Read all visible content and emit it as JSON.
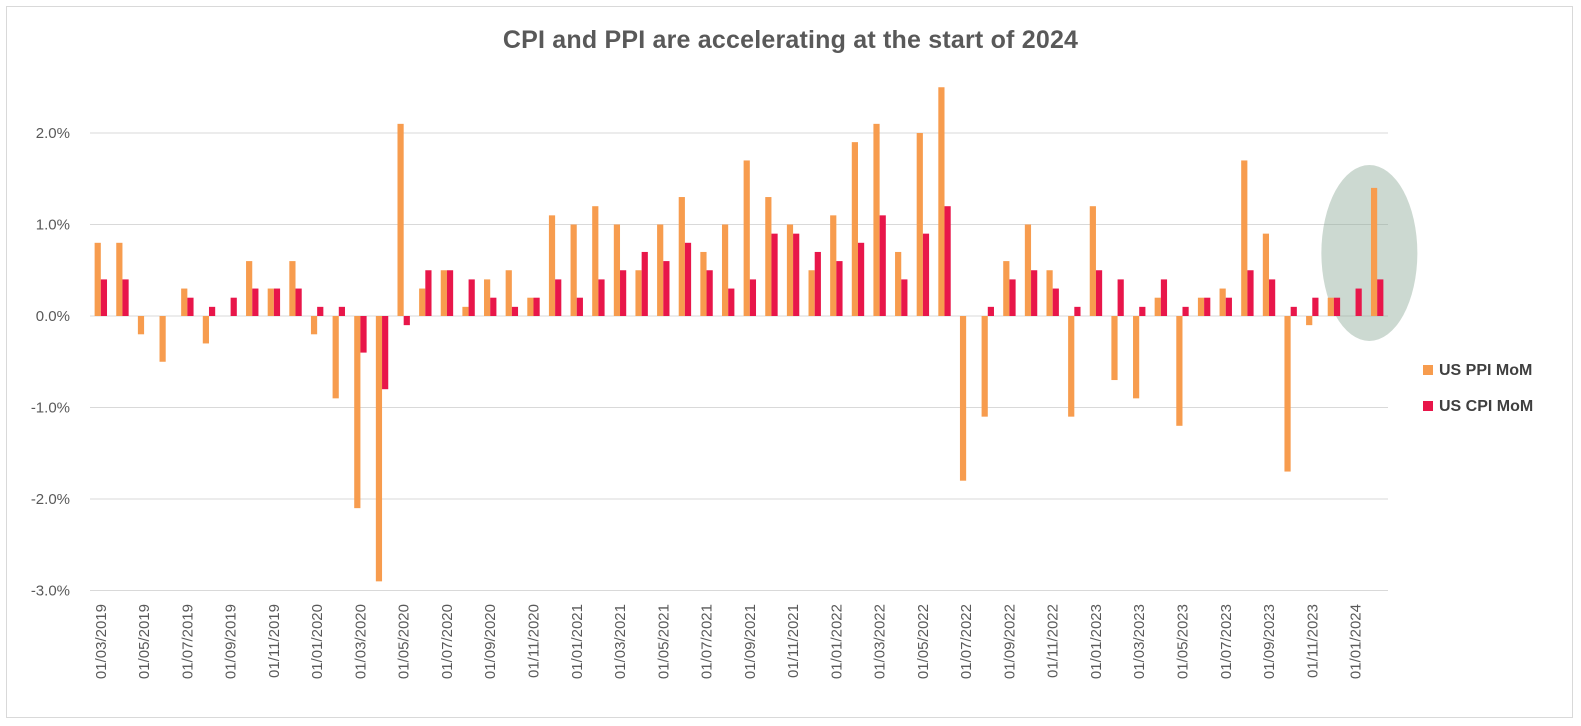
{
  "chart_data": {
    "type": "bar",
    "title": "CPI and PPI are accelerating at the start of 2024",
    "xlabel": "",
    "ylabel": "",
    "ylim": [
      -3.0,
      2.5
    ],
    "yticks": [
      "-3.0%",
      "-2.0%",
      "-1.0%",
      "0.0%",
      "1.0%",
      "2.0%"
    ],
    "ytick_values": [
      -3.0,
      -2.0,
      -1.0,
      0.0,
      1.0,
      2.0
    ],
    "grid": true,
    "legend_position": "right",
    "x_tick_labels": [
      "01/03/2019",
      "01/05/2019",
      "01/07/2019",
      "01/09/2019",
      "01/11/2019",
      "01/01/2020",
      "01/03/2020",
      "01/05/2020",
      "01/07/2020",
      "01/09/2020",
      "01/11/2020",
      "01/01/2021",
      "01/03/2021",
      "01/05/2021",
      "01/07/2021",
      "01/09/2021",
      "01/11/2021",
      "01/01/2022",
      "01/03/2022",
      "01/05/2022",
      "01/07/2022",
      "01/09/2022",
      "01/11/2022",
      "01/01/2023",
      "01/03/2023",
      "01/05/2023",
      "01/07/2023",
      "01/09/2023",
      "01/11/2023",
      "01/01/2024"
    ],
    "categories": [
      "01/03/2019",
      "01/04/2019",
      "01/05/2019",
      "01/06/2019",
      "01/07/2019",
      "01/08/2019",
      "01/09/2019",
      "01/10/2019",
      "01/11/2019",
      "01/12/2019",
      "01/01/2020",
      "01/02/2020",
      "01/03/2020",
      "01/04/2020",
      "01/05/2020",
      "01/06/2020",
      "01/07/2020",
      "01/08/2020",
      "01/09/2020",
      "01/10/2020",
      "01/11/2020",
      "01/12/2020",
      "01/01/2021",
      "01/02/2021",
      "01/03/2021",
      "01/04/2021",
      "01/05/2021",
      "01/06/2021",
      "01/07/2021",
      "01/08/2021",
      "01/09/2021",
      "01/10/2021",
      "01/11/2021",
      "01/12/2021",
      "01/01/2022",
      "01/02/2022",
      "01/03/2022",
      "01/04/2022",
      "01/05/2022",
      "01/06/2022",
      "01/07/2022",
      "01/08/2022",
      "01/09/2022",
      "01/10/2022",
      "01/11/2022",
      "01/12/2022",
      "01/01/2023",
      "01/02/2023",
      "01/03/2023",
      "01/04/2023",
      "01/05/2023",
      "01/06/2023",
      "01/07/2023",
      "01/08/2023",
      "01/09/2023",
      "01/10/2023",
      "01/11/2023",
      "01/12/2023",
      "01/01/2024",
      "01/02/2024"
    ],
    "series": [
      {
        "name": "US PPI MoM",
        "color": "#f79c4e",
        "values": [
          0.8,
          0.8,
          -0.2,
          -0.5,
          0.3,
          -0.3,
          0.0,
          0.6,
          0.3,
          0.6,
          -0.2,
          -0.9,
          -2.1,
          -2.9,
          2.1,
          0.3,
          0.5,
          0.1,
          0.4,
          0.5,
          0.2,
          1.1,
          1.0,
          1.2,
          1.0,
          0.5,
          1.0,
          1.3,
          0.7,
          1.0,
          1.7,
          1.3,
          1.0,
          0.5,
          1.1,
          1.9,
          2.1,
          0.7,
          2.0,
          2.5,
          -1.8,
          -1.1,
          0.6,
          1.0,
          0.5,
          -1.1,
          1.2,
          -0.7,
          -0.9,
          0.2,
          -1.2,
          0.2,
          0.3,
          1.7,
          0.9,
          -1.7,
          -0.1,
          0.2,
          0.0,
          1.4
        ]
      },
      {
        "name": "US CPI MoM",
        "color": "#e8164a",
        "values": [
          0.4,
          0.4,
          0.0,
          0.0,
          0.2,
          0.1,
          0.2,
          0.3,
          0.3,
          0.3,
          0.1,
          0.1,
          -0.4,
          -0.8,
          -0.1,
          0.5,
          0.5,
          0.4,
          0.2,
          0.1,
          0.2,
          0.4,
          0.2,
          0.4,
          0.5,
          0.7,
          0.6,
          0.8,
          0.5,
          0.3,
          0.4,
          0.9,
          0.9,
          0.7,
          0.6,
          0.8,
          1.1,
          0.4,
          0.9,
          1.2,
          0.0,
          0.1,
          0.4,
          0.5,
          0.3,
          0.1,
          0.5,
          0.4,
          0.1,
          0.4,
          0.1,
          0.2,
          0.2,
          0.5,
          0.4,
          0.1,
          0.2,
          0.2,
          0.3,
          0.4
        ]
      }
    ],
    "highlight_ellipse_color": "#8faa9a"
  }
}
